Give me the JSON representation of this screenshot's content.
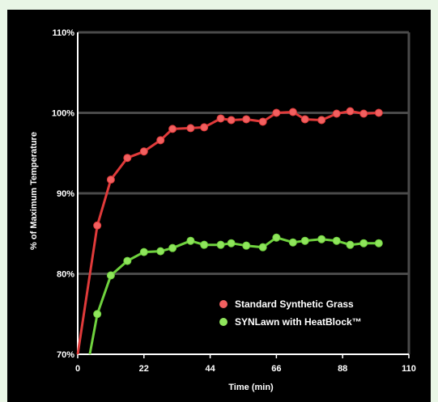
{
  "chart_data": {
    "type": "line",
    "title": "",
    "xlabel": "Time (min)",
    "ylabel": "% of Maximum Temperature",
    "xlim": [
      0,
      110
    ],
    "ylim": [
      70,
      110
    ],
    "x_ticks": [
      "0",
      "22",
      "44",
      "66",
      "88",
      "110"
    ],
    "y_ticks": [
      "70%",
      "80%",
      "90%",
      "100%",
      "110%"
    ],
    "grid": "horizontal",
    "legend_position": "bottom-right",
    "series": [
      {
        "name": "Standard Synthetic Grass",
        "color": "#e03a3a",
        "marker_color": "#f26060",
        "x": [
          0,
          6.5,
          11,
          16.5,
          22,
          27.5,
          31.5,
          37.5,
          42,
          47.5,
          51,
          56,
          61.5,
          66,
          71.5,
          75.5,
          81,
          86,
          90.5,
          95,
          100
        ],
        "y": [
          70,
          86,
          91.7,
          94.4,
          95.2,
          96.6,
          98,
          98.1,
          98.2,
          99.3,
          99.1,
          99.2,
          98.9,
          100,
          100.1,
          99.2,
          99.1,
          99.9,
          100.2,
          99.9,
          100
        ]
      },
      {
        "name": "SYNLawn with HeatBlock™",
        "color": "#6fd23e",
        "marker_color": "#8fe55c",
        "x": [
          4,
          6.5,
          11,
          16.5,
          22,
          27.5,
          31.5,
          37.5,
          42,
          47.5,
          51,
          56,
          61.5,
          66,
          71.5,
          75.5,
          81,
          86,
          90.5,
          95,
          100
        ],
        "y": [
          70,
          75,
          79.8,
          81.6,
          82.7,
          82.8,
          83.2,
          84.1,
          83.6,
          83.6,
          83.8,
          83.5,
          83.3,
          84.5,
          83.9,
          84.1,
          84.3,
          84.1,
          83.6,
          83.8,
          83.8
        ]
      }
    ]
  }
}
